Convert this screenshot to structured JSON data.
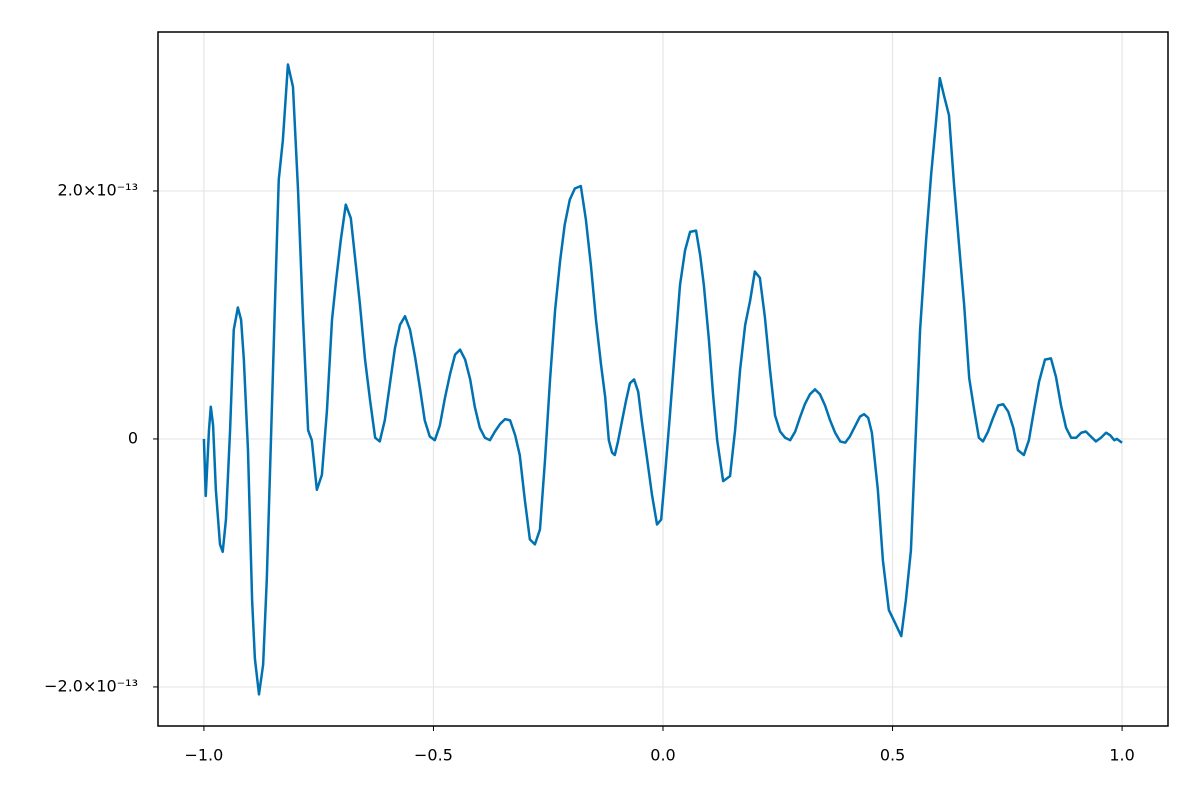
{
  "chart_data": {
    "type": "line",
    "x": [
      -1,
      -0.996,
      -0.989,
      -0.985,
      -0.98,
      -0.974,
      -0.965,
      -0.959,
      -0.952,
      -0.943,
      -0.935,
      -0.926,
      -0.919,
      -0.913,
      -0.904,
      -0.895,
      -0.889,
      -0.88,
      -0.871,
      -0.863,
      -0.854,
      -0.845,
      -0.837,
      -0.828,
      -0.817,
      -0.806,
      -0.795,
      -0.784,
      -0.773,
      -0.765,
      -0.754,
      -0.743,
      -0.732,
      -0.721,
      -0.712,
      -0.702,
      -0.691,
      -0.68,
      -0.669,
      -0.66,
      -0.649,
      -0.638,
      -0.627,
      -0.617,
      -0.606,
      -0.595,
      -0.584,
      -0.573,
      -0.562,
      -0.551,
      -0.54,
      -0.529,
      -0.519,
      -0.508,
      -0.497,
      -0.486,
      -0.475,
      -0.464,
      -0.453,
      -0.442,
      -0.431,
      -0.42,
      -0.41,
      -0.399,
      -0.388,
      -0.377,
      -0.366,
      -0.355,
      -0.344,
      -0.333,
      -0.322,
      -0.312,
      -0.301,
      -0.29,
      -0.279,
      -0.268,
      -0.257,
      -0.246,
      -0.235,
      -0.224,
      -0.214,
      -0.203,
      -0.192,
      -0.179,
      -0.168,
      -0.157,
      -0.146,
      -0.135,
      -0.126,
      -0.118,
      -0.111,
      -0.105,
      -0.098,
      -0.089,
      -0.081,
      -0.072,
      -0.063,
      -0.054,
      -0.046,
      -0.035,
      -0.024,
      -0.013,
      -0.004,
      0.004,
      0.015,
      0.026,
      0.037,
      0.048,
      0.059,
      0.072,
      0.081,
      0.089,
      0.1,
      0.109,
      0.118,
      0.131,
      0.146,
      0.157,
      0.168,
      0.179,
      0.19,
      0.2,
      0.211,
      0.222,
      0.233,
      0.244,
      0.255,
      0.266,
      0.277,
      0.288,
      0.298,
      0.309,
      0.32,
      0.331,
      0.342,
      0.353,
      0.364,
      0.375,
      0.386,
      0.397,
      0.407,
      0.418,
      0.429,
      0.438,
      0.447,
      0.455,
      0.468,
      0.479,
      0.492,
      0.505,
      0.519,
      0.529,
      0.54,
      0.551,
      0.56,
      0.573,
      0.584,
      0.595,
      0.603,
      0.612,
      0.623,
      0.634,
      0.645,
      0.656,
      0.667,
      0.678,
      0.688,
      0.697,
      0.708,
      0.719,
      0.73,
      0.741,
      0.752,
      0.763,
      0.773,
      0.786,
      0.797,
      0.808,
      0.819,
      0.832,
      0.845,
      0.856,
      0.867,
      0.878,
      0.889,
      0.9,
      0.911,
      0.921,
      0.932,
      0.943,
      0.954,
      0.965,
      0.974,
      0.983,
      0.989,
      0.996,
      1.0
    ],
    "series": [
      {
        "color": "#0072b2",
        "values": [
          0,
          -4.6e-14,
          7e-15,
          2.6e-14,
          1.1e-14,
          -4.1e-14,
          -8.5e-14,
          -9.1e-14,
          -6.5e-14,
          7e-15,
          8.8e-14,
          1.06e-13,
          9.6e-14,
          6.4e-14,
          -9e-15,
          -1.3e-13,
          -1.77e-13,
          -2.06e-13,
          -1.82e-13,
          -1.13e-13,
          -1e-15,
          1.12e-13,
          2.09e-13,
          2.41e-13,
          3.02e-13,
          2.84e-13,
          2.01e-13,
          9.6e-14,
          7e-15,
          -1e-15,
          -4.1e-14,
          -2.9e-14,
          2.3e-14,
          9.6e-14,
          1.28e-13,
          1.6e-13,
          1.89e-13,
          1.78e-13,
          1.4e-13,
          1.08e-13,
          6.4e-14,
          3.1e-14,
          1e-15,
          -2e-15,
          1.5e-14,
          4.4e-14,
          7.3e-14,
          9.2e-14,
          9.9e-14,
          8.8e-14,
          6.6e-14,
          4e-14,
          1.5e-14,
          2e-15,
          -1e-15,
          1.1e-14,
          3.3e-14,
          5.2e-14,
          6.8e-14,
          7.2e-14,
          6.4e-14,
          4.8e-14,
          2.6e-14,
          9e-15,
          1e-15,
          -1e-15,
          6e-15,
          1.2e-14,
          1.6e-14,
          1.5e-14,
          3e-15,
          -1.3e-14,
          -4.9e-14,
          -8.1e-14,
          -8.5e-14,
          -7.3e-14,
          -1.7e-14,
          4.8e-14,
          1.04e-13,
          1.44e-13,
          1.73e-13,
          1.93e-13,
          2.02e-13,
          2.04e-13,
          1.77e-13,
          1.4e-13,
          9.6e-14,
          6e-14,
          3.4e-14,
          -1e-15,
          -1.1e-14,
          -1.3e-14,
          -2e-15,
          1.5e-14,
          3e-14,
          4.5e-14,
          4.8e-14,
          3.8e-14,
          1.4e-14,
          -1.5e-14,
          -4.5e-14,
          -6.9e-14,
          -6.5e-14,
          -3.1e-14,
          1.9e-14,
          7.2e-14,
          1.24e-13,
          1.52e-13,
          1.67e-13,
          1.68e-13,
          1.48e-13,
          1.24e-13,
          8e-14,
          3.6e-14,
          -1e-15,
          -3.4e-14,
          -3e-14,
          7e-15,
          5.6e-14,
          9.2e-14,
          1.12e-13,
          1.35e-13,
          1.3e-13,
          9.8e-14,
          5.6e-14,
          1.9e-14,
          6e-15,
          1e-15,
          -1e-15,
          6e-15,
          1.7e-14,
          2.8e-14,
          3.6e-14,
          4e-14,
          3.6e-14,
          2.7e-14,
          1.5e-14,
          5e-15,
          -2e-15,
          -3e-15,
          2e-15,
          1e-14,
          1.8e-14,
          2e-14,
          1.7e-14,
          5e-15,
          -4.1e-14,
          -9.8e-14,
          -1.38e-13,
          -1.48e-13,
          -1.59e-13,
          -1.3e-13,
          -9e-14,
          7e-15,
          8.8e-14,
          1.6e-13,
          2.13e-13,
          2.57e-13,
          2.91e-13,
          2.77e-13,
          2.61e-13,
          2.05e-13,
          1.56e-13,
          1.08e-13,
          4.9e-14,
          2.3e-14,
          1e-15,
          -2e-15,
          6e-15,
          1.7e-14,
          2.7e-14,
          2.8e-14,
          2.2e-14,
          9e-15,
          -9e-15,
          -1.3e-14,
          -1e-15,
          2.3e-14,
          4.6e-14,
          6.4e-14,
          6.5e-14,
          5e-14,
          2.7e-14,
          9e-15,
          1e-15,
          1e-15,
          5e-15,
          6e-15,
          2e-15,
          -2e-15,
          1e-15,
          5e-15,
          3e-15,
          -1e-15,
          0,
          -2e-15,
          -3e-15
        ]
      }
    ],
    "xlim": [
      -1.1,
      1.1
    ],
    "ylim": [
      -2.315e-13,
      3.282e-13
    ],
    "xticks": [
      {
        "value": -1,
        "label": "−1.0"
      },
      {
        "value": -0.5,
        "label": "−0.5"
      },
      {
        "value": 0,
        "label": "0.0"
      },
      {
        "value": 0.5,
        "label": "0.5"
      },
      {
        "value": 1,
        "label": "1.0"
      }
    ],
    "yticks": [
      {
        "value": -2e-13,
        "label": "−2.0×10⁻¹³"
      },
      0,
      {
        "value": 2e-13,
        "label": "2.0×10⁻¹³"
      }
    ],
    "grid": true
  }
}
